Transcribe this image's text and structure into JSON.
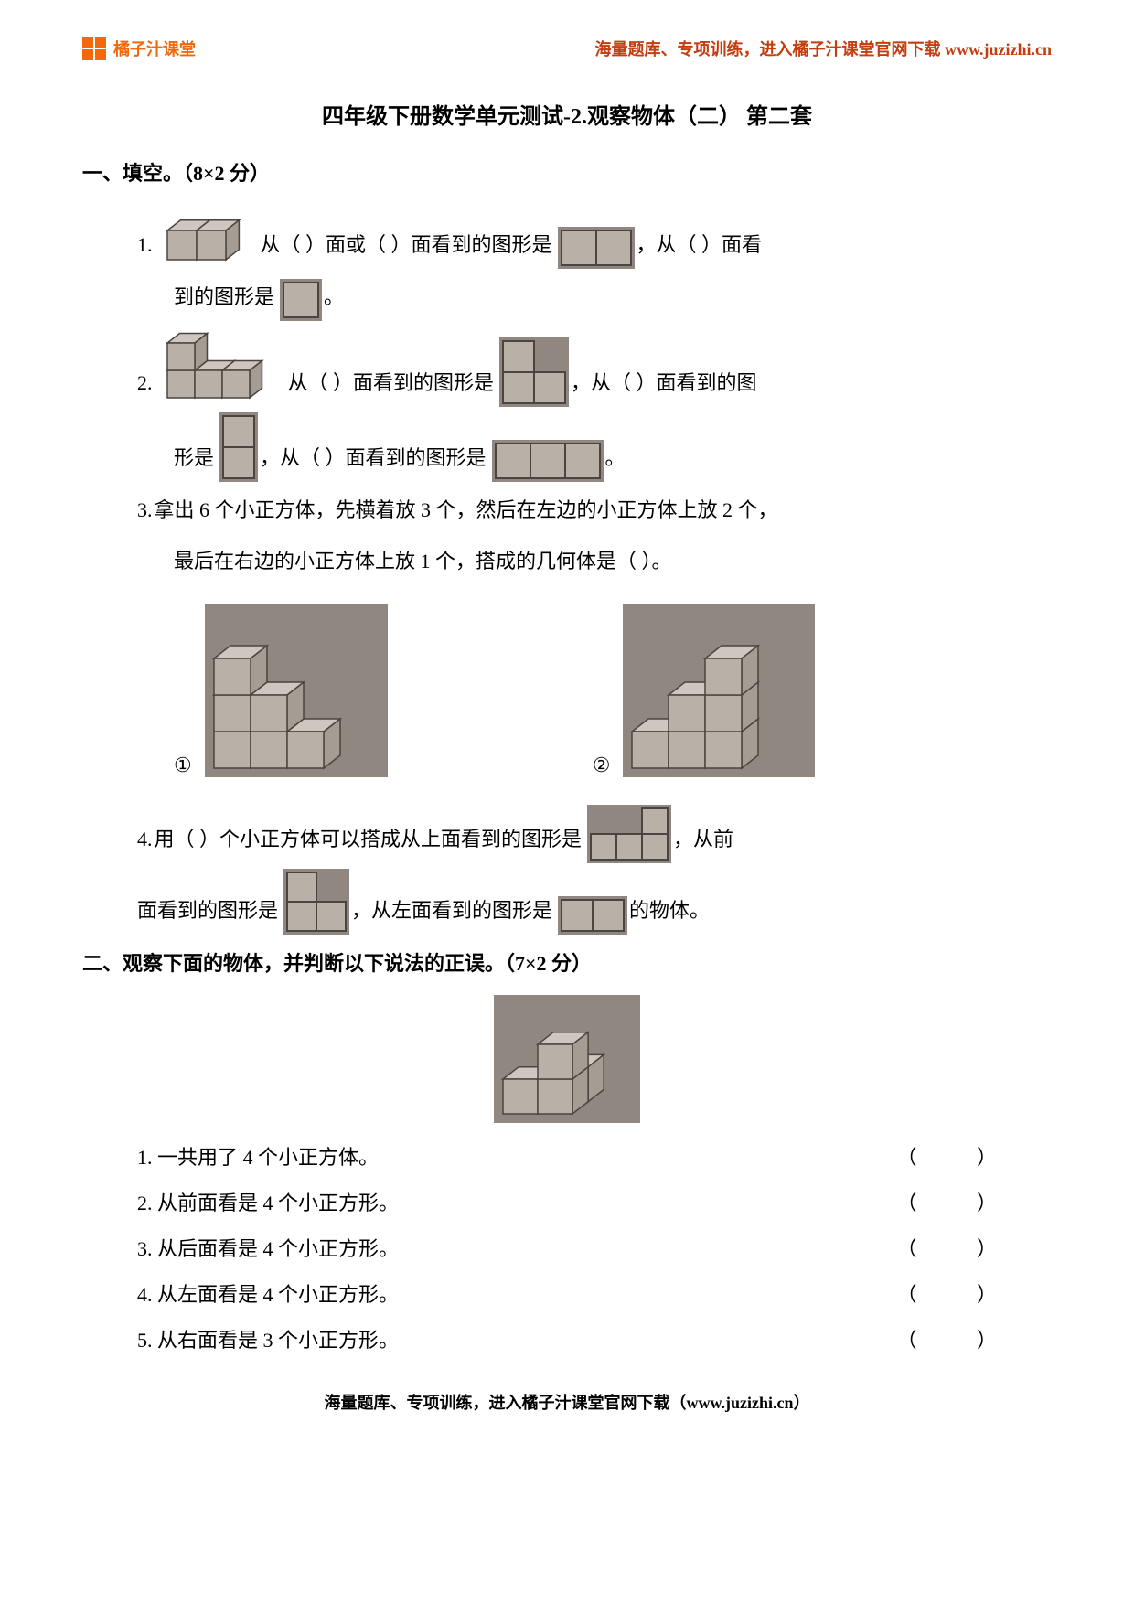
{
  "colors": {
    "logo": "#f5680a",
    "header_text": "#c43d0f",
    "cube_fill": "#b9b0a8",
    "cube_stroke": "#4a4540",
    "cube_bg": "#8f8780",
    "text": "#000000"
  },
  "header": {
    "logo_text": "橘子汁课堂",
    "link_text": "海量题库、专项训练，进入橘子汁课堂官网下载 www.juzizhi.cn"
  },
  "title": "四年级下册数学单元测试-2.观察物体（二） 第二套",
  "section1": {
    "heading": "一、填空。（8×2 分）",
    "q1": {
      "num": "1.",
      "t1": " 从（    ）面或（    ）面看到的图形是",
      "t2": "，从（    ）面看",
      "t3": "到的图形是",
      "t4": "。"
    },
    "q2": {
      "num": "2.",
      "t1": "从（    ）面看到的图形是",
      "t2": "，从（    ）面看到的图",
      "t3": "形是",
      "t4": "，从（    ）面看到的图形是",
      "t5": "。"
    },
    "q3": {
      "num": "3.",
      "t1": "拿出 6 个小正方体，先横着放 3 个，然后在左边的小正方体上放 2 个，",
      "t2": "最后在右边的小正方体上放 1 个，搭成的几何体是（    ）。",
      "opt1": "①",
      "opt2": "②"
    },
    "q4": {
      "num": "4.",
      "t1": "用（    ）个小正方体可以搭成从上面看到的图形是",
      "t2": "，从前",
      "t3": "面看到的图形是",
      "t4": "，从左面看到的图形是",
      "t5": "的物体。"
    }
  },
  "section2": {
    "heading": "二、观察下面的物体，并判断以下说法的正误。（7×2 分）",
    "items": [
      "1. 一共用了 4 个小正方体。",
      "2. 从前面看是 4 个小正方形。",
      "3. 从后面看是 4 个小正方形。",
      "4. 从左面看是 4 个小正方形。",
      "5. 从右面看是 3 个小正方形。"
    ],
    "paren": "（  ）"
  },
  "footer": "海量题库、专项训练，进入橘子汁课堂官网下载（www.juzizhi.cn）",
  "figs": {
    "cube_unit": 32,
    "flat_unit": 38
  }
}
